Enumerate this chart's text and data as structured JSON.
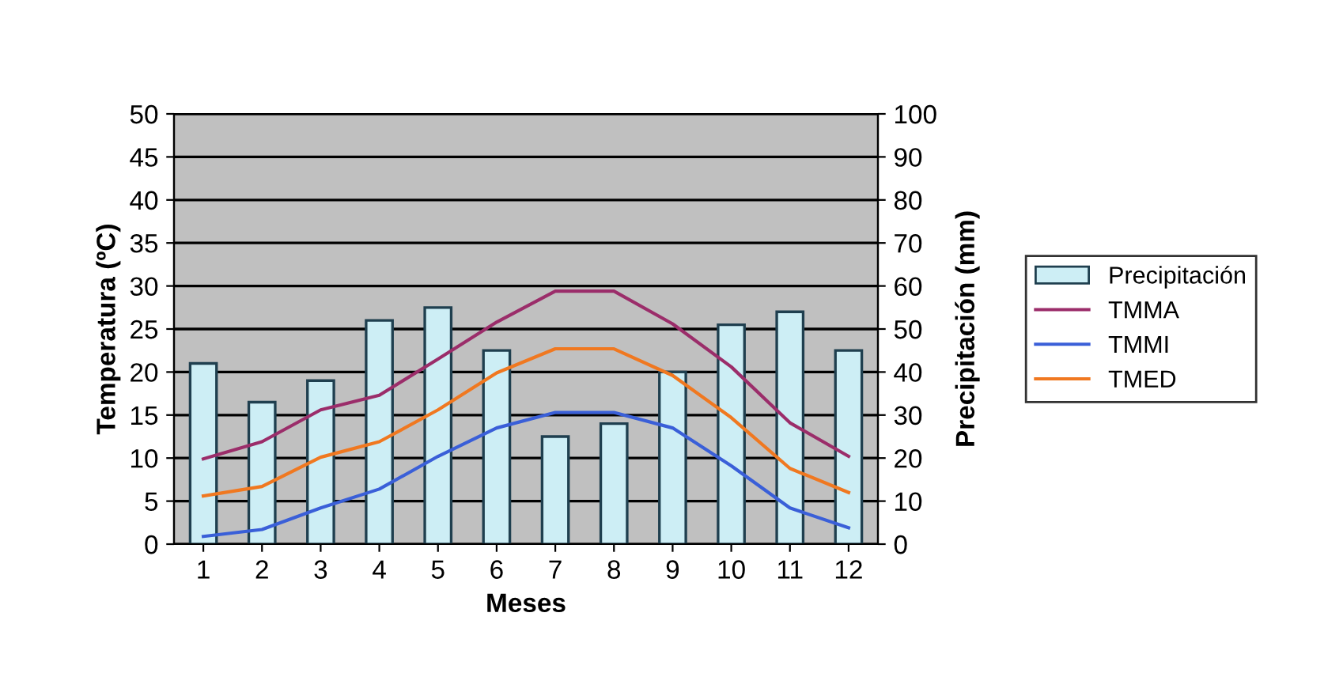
{
  "chart_data": {
    "type": "line",
    "xlabel": "Meses",
    "ylabel": "Temperatura (ºC)",
    "y2label": "Precipitación (mm)",
    "categories": [
      "1",
      "2",
      "3",
      "4",
      "5",
      "6",
      "7",
      "8",
      "9",
      "10",
      "11",
      "12"
    ],
    "series": [
      {
        "name": "Precipitación",
        "type": "bar",
        "axis": "y2",
        "color": "#cdeef5",
        "values": [
          42,
          33,
          38,
          52,
          55,
          45,
          25,
          28,
          40,
          51,
          54,
          45
        ]
      },
      {
        "name": "TMMA",
        "color": "#9b2d6a",
        "values": [
          9.9,
          11.9,
          15.6,
          17.3,
          21.5,
          25.8,
          29.4,
          29.4,
          25.6,
          20.6,
          14.1,
          10.2
        ]
      },
      {
        "name": "TMMI",
        "color": "#3a5fd8",
        "values": [
          0.9,
          1.7,
          4.2,
          6.4,
          10.2,
          13.5,
          15.3,
          15.3,
          13.5,
          9.1,
          4.2,
          1.9
        ]
      },
      {
        "name": "TMED",
        "color": "#f07820",
        "values": [
          5.6,
          6.7,
          10.1,
          11.9,
          15.6,
          19.9,
          22.7,
          22.7,
          19.6,
          14.7,
          8.8,
          6.0
        ]
      }
    ],
    "ylim": [
      0,
      50
    ],
    "yticks": [
      0,
      5,
      10,
      15,
      20,
      25,
      30,
      35,
      40,
      45,
      50
    ],
    "y2lim": [
      0,
      100
    ],
    "y2ticks": [
      0,
      10,
      20,
      30,
      40,
      50,
      60,
      70,
      80,
      90,
      100
    ],
    "grid": "y",
    "legend": "right",
    "marker": "none",
    "line_style": "solid"
  }
}
